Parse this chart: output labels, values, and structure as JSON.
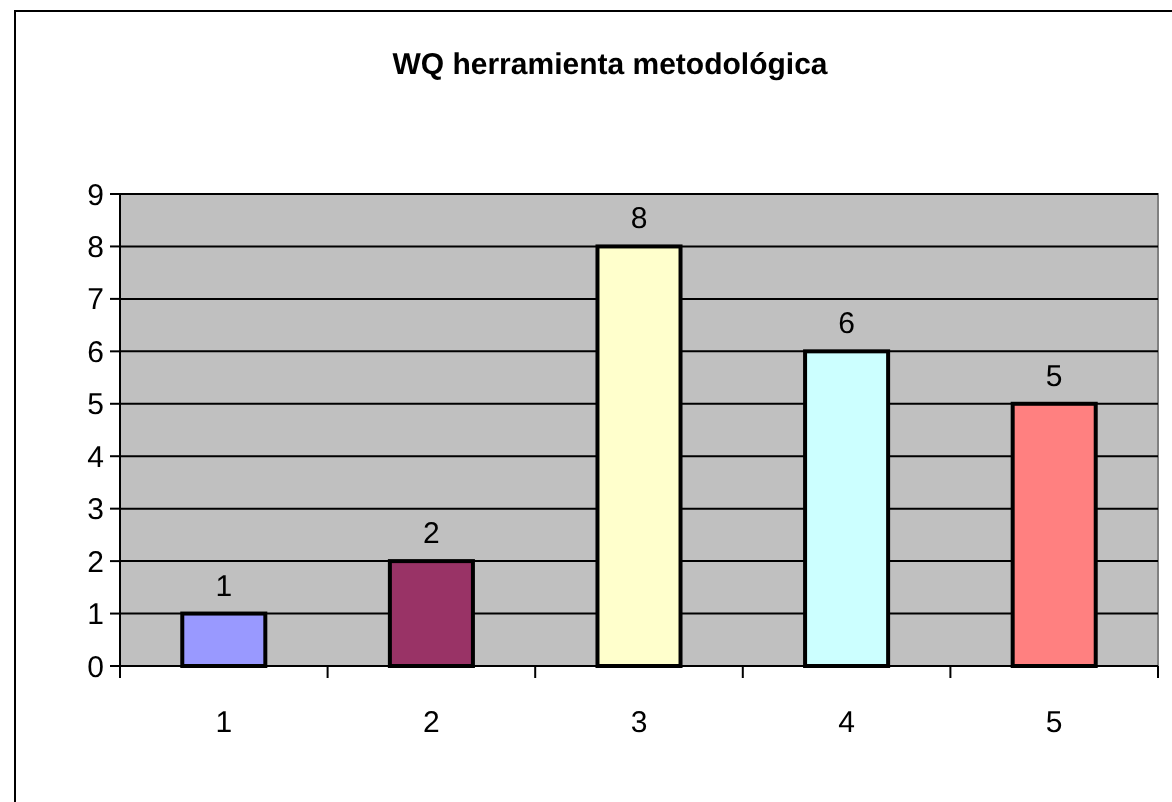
{
  "chart_data": {
    "type": "bar",
    "title": "WQ herramienta metodológica",
    "categories": [
      "1",
      "2",
      "3",
      "4",
      "5"
    ],
    "values": [
      1,
      2,
      8,
      6,
      5
    ],
    "colors": [
      "#9999ff",
      "#993366",
      "#ffffcc",
      "#ccffff",
      "#ff8080"
    ],
    "ylim": [
      0,
      9
    ],
    "yticks": [
      0,
      1,
      2,
      3,
      4,
      5,
      6,
      7,
      8,
      9
    ],
    "grid": "y",
    "data_labels": true
  }
}
